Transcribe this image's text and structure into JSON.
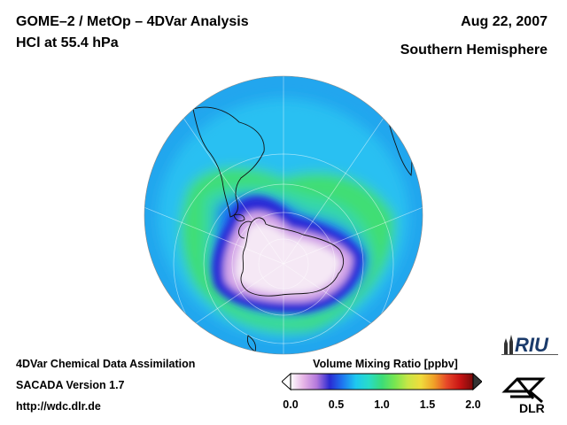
{
  "header": {
    "title": "GOME–2 / MetOp – 4DVar Analysis",
    "subtitle": "HCl at 55.4 hPa",
    "date": "Aug 22, 2007",
    "hemisphere": "Southern Hemisphere"
  },
  "footer": {
    "line1": "4DVar Chemical Data Assimilation",
    "line2": "SACADA Version 1.7",
    "line3": "http://wdc.dlr.de"
  },
  "colorbar": {
    "title": "Volume Mixing Ratio [ppbv]",
    "min": 0.0,
    "max": 2.0,
    "ticks": [
      "0.0",
      "0.5",
      "1.0",
      "1.5",
      "2.0"
    ],
    "colors": [
      "#ffffff",
      "#e6b4e6",
      "#b478dc",
      "#2a2ad2",
      "#1e78f0",
      "#1ec8f0",
      "#28dcc8",
      "#3cdc78",
      "#78e650",
      "#c8e646",
      "#f0dc3c",
      "#f0a028",
      "#e64628",
      "#c81414",
      "#780a0a"
    ]
  },
  "logos": {
    "riu": "RIU",
    "dlr": "DLR"
  },
  "map": {
    "projection": "orthographic",
    "center": "South Pole",
    "field": "HCl volume mixing ratio"
  }
}
